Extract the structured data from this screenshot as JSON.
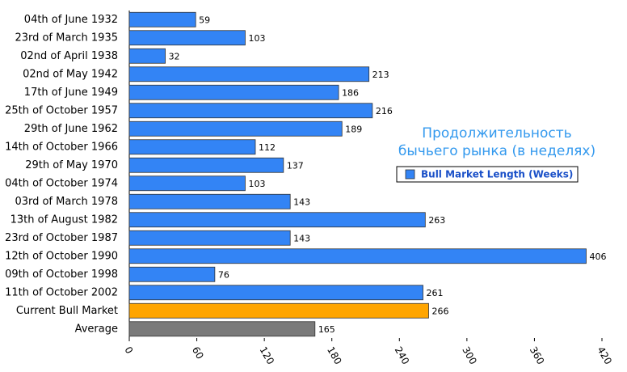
{
  "chart_data": {
    "type": "barh",
    "annotation": [
      "Продолжительность",
      "бычьего рынка (в неделях)"
    ],
    "categories": [
      "04th of June 1932",
      "23rd of March 1935",
      "02nd of April 1938",
      "02nd of May 1942",
      "17th of June 1949",
      "25th of October 1957",
      "29th of June 1962",
      "14th of October 1966",
      "29th of May 1970",
      "04th of October 1974",
      "03rd of March 1978",
      "13th of August 1982",
      "23rd of October 1987",
      "12th of October 1990",
      "09th of October 1998",
      "11th of October 2002",
      "Current Bull Market",
      "Average"
    ],
    "series": [
      {
        "name": "Bull Market Length (Weeks)",
        "color": "#3384f5",
        "values": [
          59,
          103,
          32,
          213,
          186,
          216,
          189,
          112,
          137,
          103,
          143,
          263,
          143,
          406,
          76,
          261,
          266,
          165
        ],
        "point_colors": [
          "#3384f5",
          "#3384f5",
          "#3384f5",
          "#3384f5",
          "#3384f5",
          "#3384f5",
          "#3384f5",
          "#3384f5",
          "#3384f5",
          "#3384f5",
          "#3384f5",
          "#3384f5",
          "#3384f5",
          "#3384f5",
          "#3384f5",
          "#3384f5",
          "#ffa500",
          "#7a7a7a"
        ]
      }
    ],
    "xlim": [
      0,
      420
    ],
    "xticks": [
      0,
      60,
      120,
      180,
      240,
      300,
      360,
      420
    ],
    "legend": "right"
  }
}
